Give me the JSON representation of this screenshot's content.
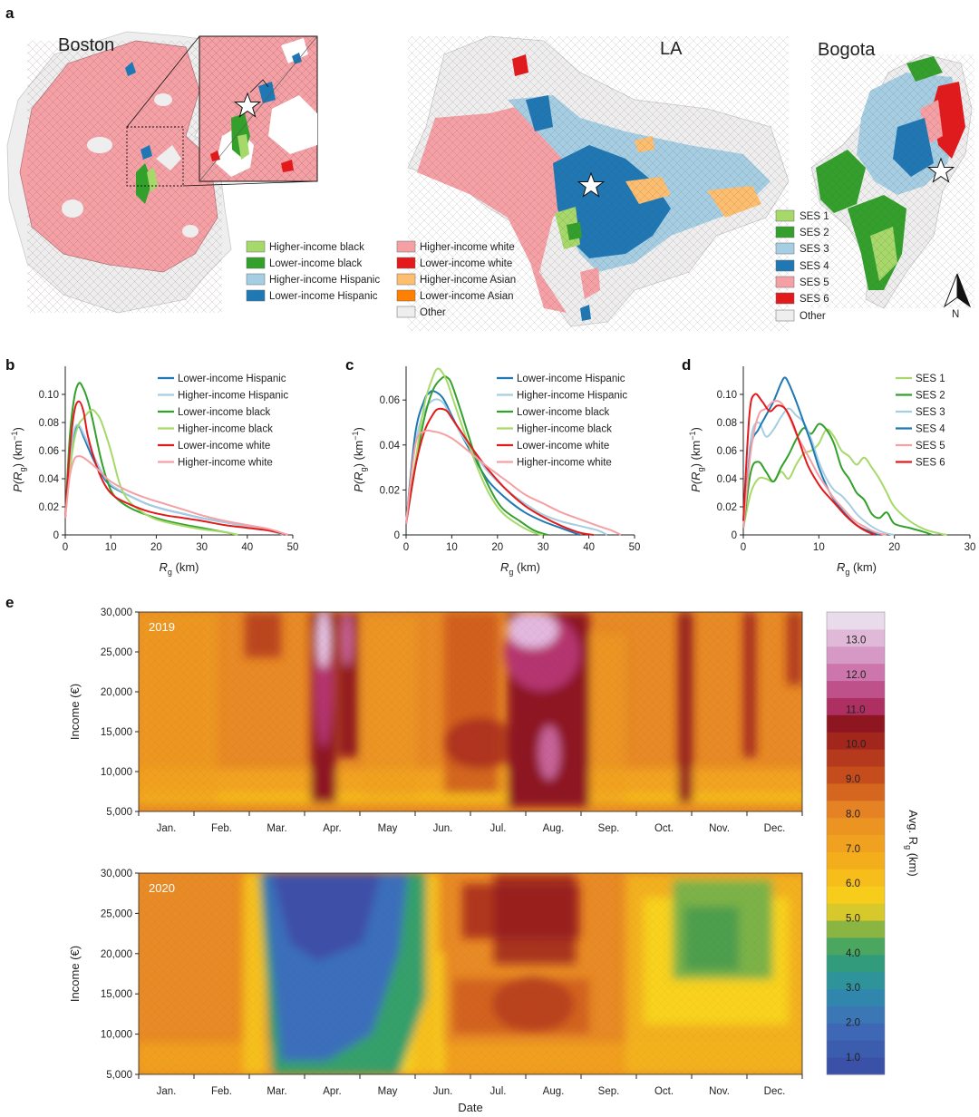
{
  "panel_labels": [
    "a",
    "b",
    "c",
    "d",
    "e"
  ],
  "map_panel": {
    "cities": [
      "Boston",
      "LA",
      "Bogota"
    ],
    "legend_us": [
      {
        "label": "Higher-income black",
        "color": "#a6d96a"
      },
      {
        "label": "Lower-income black",
        "color": "#33a02c"
      },
      {
        "label": "Higher-income Hispanic",
        "color": "#a6cee3"
      },
      {
        "label": "Lower-income Hispanic",
        "color": "#1f78b4"
      },
      {
        "label": "Higher-income white",
        "color": "#f4a0a4"
      },
      {
        "label": "Lower-income white",
        "color": "#e31a1c"
      },
      {
        "label": "Higher-income Asian",
        "color": "#fdbf6f"
      },
      {
        "label": "Lower-income Asian",
        "color": "#ff7f00"
      },
      {
        "label": "Other",
        "color": "#eeeeee"
      }
    ],
    "legend_bogota": [
      {
        "label": "SES 1",
        "color": "#a6d96a"
      },
      {
        "label": "SES 2",
        "color": "#33a02c"
      },
      {
        "label": "SES 3",
        "color": "#a6cee3"
      },
      {
        "label": "SES 4",
        "color": "#1f78b4"
      },
      {
        "label": "SES 5",
        "color": "#f4a0a4"
      },
      {
        "label": "SES 6",
        "color": "#e31a1c"
      },
      {
        "label": "Other",
        "color": "#eeeeee"
      }
    ],
    "north_label": "N"
  },
  "chart_data": [
    {
      "panel": "b",
      "type": "line",
      "xlabel_main": "R",
      "xlabel_sub": "g",
      "xlabel_unit": " (km)",
      "ylabel_main": "P(R",
      "ylabel_sub": "g",
      "ylabel_unit": ") (km",
      "ylabel_sup": "−1",
      "ylabel_close": ")",
      "xlim": [
        0,
        50
      ],
      "ylim": [
        0,
        0.12
      ],
      "xticks": [
        "0",
        "10",
        "20",
        "30",
        "40",
        "50"
      ],
      "yticks": [
        "0",
        "0.02",
        "0.04",
        "0.06",
        "0.08",
        "0.10"
      ],
      "series": [
        {
          "name": "Lower-income Hispanic",
          "color": "#1f78b4",
          "x": [
            0,
            1,
            2,
            3,
            4,
            6,
            8,
            10,
            14,
            18,
            22,
            26,
            30,
            35,
            40,
            45,
            48
          ],
          "y": [
            0.012,
            0.055,
            0.073,
            0.077,
            0.07,
            0.055,
            0.043,
            0.035,
            0.028,
            0.022,
            0.018,
            0.015,
            0.012,
            0.009,
            0.006,
            0.003,
            0.0
          ]
        },
        {
          "name": "Higher-income Hispanic",
          "color": "#a6cee3",
          "x": [
            0,
            1,
            2,
            3,
            4,
            6,
            8,
            10,
            14,
            18,
            22,
            26,
            30,
            35,
            40,
            45,
            48
          ],
          "y": [
            0.012,
            0.055,
            0.075,
            0.078,
            0.072,
            0.058,
            0.045,
            0.036,
            0.028,
            0.022,
            0.018,
            0.015,
            0.012,
            0.009,
            0.006,
            0.003,
            0.0
          ]
        },
        {
          "name": "Lower-income black",
          "color": "#33a02c",
          "x": [
            0,
            1,
            2,
            3,
            4,
            5,
            6,
            8,
            10,
            12,
            15,
            20,
            25,
            30,
            35,
            38
          ],
          "y": [
            0.012,
            0.07,
            0.098,
            0.108,
            0.104,
            0.095,
            0.082,
            0.052,
            0.032,
            0.024,
            0.018,
            0.012,
            0.008,
            0.005,
            0.002,
            0.0
          ]
        },
        {
          "name": "Higher-income black",
          "color": "#a6d96a",
          "x": [
            0,
            1,
            2,
            3,
            4,
            5,
            6,
            7,
            8,
            10,
            12,
            14,
            17,
            20,
            25,
            30,
            35,
            38
          ],
          "y": [
            0.012,
            0.045,
            0.068,
            0.079,
            0.083,
            0.087,
            0.089,
            0.086,
            0.08,
            0.06,
            0.036,
            0.024,
            0.016,
            0.011,
            0.007,
            0.004,
            0.002,
            0.0
          ]
        },
        {
          "name": "Lower-income white",
          "color": "#e31a1c",
          "x": [
            0,
            1,
            2,
            3,
            4,
            5,
            7,
            9,
            11,
            14,
            18,
            22,
            26,
            30,
            35,
            40,
            45,
            49
          ],
          "y": [
            0.012,
            0.06,
            0.088,
            0.095,
            0.088,
            0.07,
            0.048,
            0.034,
            0.027,
            0.022,
            0.017,
            0.014,
            0.012,
            0.01,
            0.007,
            0.005,
            0.003,
            0.0
          ]
        },
        {
          "name": "Higher-income white",
          "color": "#f4a0a4",
          "x": [
            0,
            1,
            2,
            3,
            4,
            6,
            8,
            10,
            14,
            18,
            22,
            26,
            30,
            35,
            40,
            45,
            49
          ],
          "y": [
            0.012,
            0.042,
            0.054,
            0.056,
            0.055,
            0.05,
            0.044,
            0.038,
            0.031,
            0.026,
            0.022,
            0.018,
            0.014,
            0.01,
            0.007,
            0.004,
            0.0
          ]
        }
      ]
    },
    {
      "panel": "c",
      "type": "line",
      "xlabel_main": "R",
      "xlabel_sub": "g",
      "xlabel_unit": " (km)",
      "ylabel_main": "P(R",
      "ylabel_sub": "g",
      "ylabel_unit": ") (km",
      "ylabel_sup": "−1",
      "ylabel_close": ")",
      "xlim": [
        0,
        50
      ],
      "ylim": [
        0,
        0.075
      ],
      "xticks": [
        "0",
        "10",
        "20",
        "30",
        "40",
        "50"
      ],
      "yticks": [
        "0",
        "0.02",
        "0.04",
        "0.06"
      ],
      "series": [
        {
          "name": "Lower-income Hispanic",
          "color": "#1f78b4",
          "x": [
            0,
            2,
            4,
            5,
            6,
            8,
            10,
            12,
            15,
            18,
            22,
            26,
            30,
            34,
            38
          ],
          "y": [
            0.005,
            0.045,
            0.06,
            0.063,
            0.064,
            0.061,
            0.053,
            0.045,
            0.034,
            0.024,
            0.016,
            0.01,
            0.006,
            0.003,
            0.0
          ]
        },
        {
          "name": "Higher-income Hispanic",
          "color": "#a6cee3",
          "x": [
            0,
            2,
            4,
            6,
            8,
            10,
            12,
            15,
            18,
            22,
            26,
            30,
            34,
            38,
            42,
            44
          ],
          "y": [
            0.005,
            0.04,
            0.055,
            0.06,
            0.059,
            0.052,
            0.045,
            0.036,
            0.028,
            0.02,
            0.014,
            0.009,
            0.006,
            0.004,
            0.002,
            0.0
          ]
        },
        {
          "name": "Lower-income black",
          "color": "#33a02c",
          "x": [
            0,
            2,
            4,
            6,
            8,
            9,
            10,
            12,
            15,
            18,
            21,
            25,
            28,
            31
          ],
          "y": [
            0.005,
            0.03,
            0.052,
            0.065,
            0.07,
            0.07,
            0.067,
            0.055,
            0.036,
            0.022,
            0.012,
            0.006,
            0.002,
            0.0
          ]
        },
        {
          "name": "Higher-income black",
          "color": "#a6d96a",
          "x": [
            0,
            2,
            4,
            6,
            7,
            8,
            9,
            10,
            12,
            15,
            18,
            21,
            25,
            28,
            30
          ],
          "y": [
            0.005,
            0.032,
            0.058,
            0.071,
            0.074,
            0.072,
            0.068,
            0.062,
            0.05,
            0.033,
            0.019,
            0.01,
            0.004,
            0.001,
            0.0
          ]
        },
        {
          "name": "Lower-income white",
          "color": "#e31a1c",
          "x": [
            0,
            2,
            4,
            6,
            7,
            8,
            9,
            10,
            12,
            15,
            18,
            22,
            26,
            30,
            34,
            38,
            41
          ],
          "y": [
            0.005,
            0.03,
            0.046,
            0.054,
            0.056,
            0.056,
            0.055,
            0.052,
            0.046,
            0.037,
            0.029,
            0.02,
            0.013,
            0.008,
            0.004,
            0.001,
            0.0
          ]
        },
        {
          "name": "Higher-income white",
          "color": "#f4a0a4",
          "x": [
            0,
            2,
            4,
            6,
            8,
            10,
            12,
            15,
            18,
            22,
            26,
            30,
            34,
            38,
            42,
            45,
            47
          ],
          "y": [
            0.005,
            0.04,
            0.046,
            0.046,
            0.045,
            0.043,
            0.04,
            0.035,
            0.03,
            0.024,
            0.018,
            0.014,
            0.01,
            0.007,
            0.004,
            0.002,
            0.0
          ]
        }
      ]
    },
    {
      "panel": "d",
      "type": "line",
      "xlabel_main": "R",
      "xlabel_sub": "g",
      "xlabel_unit": " (km)",
      "ylabel_main": "P(R",
      "ylabel_sub": "g",
      "ylabel_unit": ") (km",
      "ylabel_sup": "−1",
      "ylabel_close": ")",
      "xlim": [
        0,
        30
      ],
      "ylim": [
        0,
        0.12
      ],
      "xticks": [
        "0",
        "10",
        "20",
        "30"
      ],
      "yticks": [
        "0",
        "0.02",
        "0.04",
        "0.06",
        "0.08",
        "0.10"
      ],
      "series": [
        {
          "name": "SES 1",
          "color": "#a6d96a",
          "x": [
            0,
            1,
            2,
            3,
            4,
            5,
            6,
            7,
            8,
            9,
            10,
            11,
            12,
            13,
            14,
            15,
            16,
            17,
            18,
            19,
            20,
            22,
            24,
            26,
            27
          ],
          "y": [
            0.005,
            0.03,
            0.04,
            0.04,
            0.038,
            0.045,
            0.04,
            0.05,
            0.058,
            0.06,
            0.065,
            0.075,
            0.07,
            0.06,
            0.056,
            0.05,
            0.055,
            0.048,
            0.04,
            0.03,
            0.02,
            0.01,
            0.004,
            0.001,
            0.0
          ]
        },
        {
          "name": "SES 2",
          "color": "#33a02c",
          "x": [
            0,
            1,
            2,
            3,
            4,
            5,
            6,
            7,
            8,
            9,
            10,
            11,
            12,
            13,
            14,
            15,
            16,
            17,
            18,
            19,
            20,
            22,
            24,
            25
          ],
          "y": [
            0.005,
            0.045,
            0.052,
            0.045,
            0.038,
            0.048,
            0.057,
            0.068,
            0.076,
            0.072,
            0.079,
            0.075,
            0.065,
            0.048,
            0.04,
            0.03,
            0.025,
            0.015,
            0.012,
            0.016,
            0.008,
            0.005,
            0.002,
            0.0
          ]
        },
        {
          "name": "SES 3",
          "color": "#a6cee3",
          "x": [
            0,
            1,
            2,
            3,
            4,
            5,
            6,
            7,
            8,
            9,
            10,
            11,
            12,
            13,
            14,
            15,
            16,
            17,
            18,
            19,
            20
          ],
          "y": [
            0.005,
            0.068,
            0.08,
            0.07,
            0.075,
            0.084,
            0.09,
            0.085,
            0.08,
            0.068,
            0.052,
            0.04,
            0.032,
            0.028,
            0.022,
            0.015,
            0.01,
            0.006,
            0.003,
            0.001,
            0.0
          ]
        },
        {
          "name": "SES 4",
          "color": "#1f78b4",
          "x": [
            0,
            1,
            2,
            3,
            4,
            5,
            5.5,
            6,
            7,
            8,
            9,
            10,
            11,
            12,
            13,
            14,
            15,
            16,
            17,
            18
          ],
          "y": [
            0.005,
            0.062,
            0.075,
            0.085,
            0.095,
            0.108,
            0.112,
            0.108,
            0.095,
            0.08,
            0.065,
            0.048,
            0.035,
            0.025,
            0.018,
            0.012,
            0.007,
            0.004,
            0.002,
            0.0
          ]
        },
        {
          "name": "SES 5",
          "color": "#f4a0a4",
          "x": [
            0,
            1,
            2,
            3,
            4,
            5,
            6,
            7,
            8,
            9,
            10,
            11,
            12,
            13,
            14,
            15,
            16,
            17,
            18,
            19
          ],
          "y": [
            0.005,
            0.06,
            0.085,
            0.09,
            0.095,
            0.094,
            0.085,
            0.072,
            0.062,
            0.052,
            0.042,
            0.034,
            0.026,
            0.02,
            0.014,
            0.009,
            0.006,
            0.003,
            0.001,
            0.0
          ]
        },
        {
          "name": "SES 6",
          "color": "#e31a1c",
          "x": [
            0,
            0.8,
            1.5,
            2.5,
            3.5,
            4.5,
            5.5,
            6.5,
            7.5,
            8.5,
            9.5,
            10.5,
            11.5,
            12.5,
            13.5,
            14.5,
            15.5,
            16.5,
            17.5
          ],
          "y": [
            0.01,
            0.085,
            0.1,
            0.095,
            0.088,
            0.092,
            0.09,
            0.08,
            0.065,
            0.05,
            0.04,
            0.032,
            0.026,
            0.02,
            0.014,
            0.009,
            0.005,
            0.002,
            0.0
          ]
        }
      ]
    },
    {
      "panel": "e",
      "type": "heatmap",
      "ylabel": "Income (€)",
      "xlabel": "Date",
      "colorbar_label_main": "Avg. R",
      "colorbar_label_sub": "g",
      "colorbar_label_unit": " (km)",
      "colorbar_range": [
        0.5,
        13.8
      ],
      "colorbar_ticks": [
        "1.0",
        "2.0",
        "3.0",
        "4.0",
        "5.0",
        "6.0",
        "7.0",
        "8.0",
        "9.0",
        "10.0",
        "11.0",
        "12.0",
        "13.0"
      ],
      "months": [
        "Jan.",
        "Feb.",
        "Mar.",
        "Apr.",
        "May",
        "Jun.",
        "Jul.",
        "Aug.",
        "Sep.",
        "Oct.",
        "Nov.",
        "Dec."
      ],
      "income_ticks": [
        "5,000",
        "10,000",
        "15,000",
        "20,000",
        "25,000",
        "30,000"
      ],
      "income_range": [
        5000,
        30000
      ],
      "years": [
        {
          "year": "2019",
          "notes": "Mostly 6–8 km; peaks >13 km around early April and late July–August; red bands at high incomes in Jun., mid-Oct., mid-Nov., late Dec."
        },
        {
          "year": "2020",
          "notes": "Mostly 6–8 km; lockdown minimum ~1–3 km from mid-March to early June; 4–5 km at high incomes in Oct.–Nov.; ~10 km in Jul.–Aug."
        }
      ]
    }
  ]
}
